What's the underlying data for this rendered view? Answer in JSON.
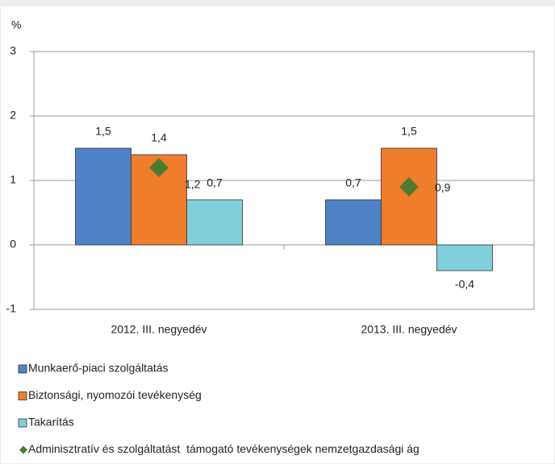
{
  "chart_data": {
    "type": "bar",
    "y_axis_label": "%",
    "categories": [
      "2012. III. negyedév",
      "2013. III. negyedév"
    ],
    "series": [
      {
        "name": "Munkaerő-piaci szolgáltatás",
        "color": "#4f81c6",
        "values": [
          1.5,
          0.7
        ],
        "value_labels": [
          "1,5",
          "0,7"
        ]
      },
      {
        "name": "Biztonsági, nyomozói tevékenység",
        "color": "#ef7d2c",
        "values": [
          1.4,
          1.5
        ],
        "value_labels": [
          "1,4",
          "1,5"
        ]
      },
      {
        "name": "Takarítás",
        "color": "#7fd0da",
        "values": [
          0.7,
          -0.4
        ],
        "value_labels": [
          "0,7",
          "-0,4"
        ]
      },
      {
        "name": "Adminisztratív és szolgáltatást  támogató tevékenységek nemzetgazdasági ág",
        "color": "#4e7a32",
        "marker": "diamond",
        "values": [
          1.2,
          0.9
        ],
        "value_labels": [
          "1,2",
          "0,9"
        ]
      }
    ],
    "ylim": [
      -1,
      3
    ],
    "yticks": [
      -1,
      0,
      1,
      2,
      3
    ],
    "grid": true
  }
}
